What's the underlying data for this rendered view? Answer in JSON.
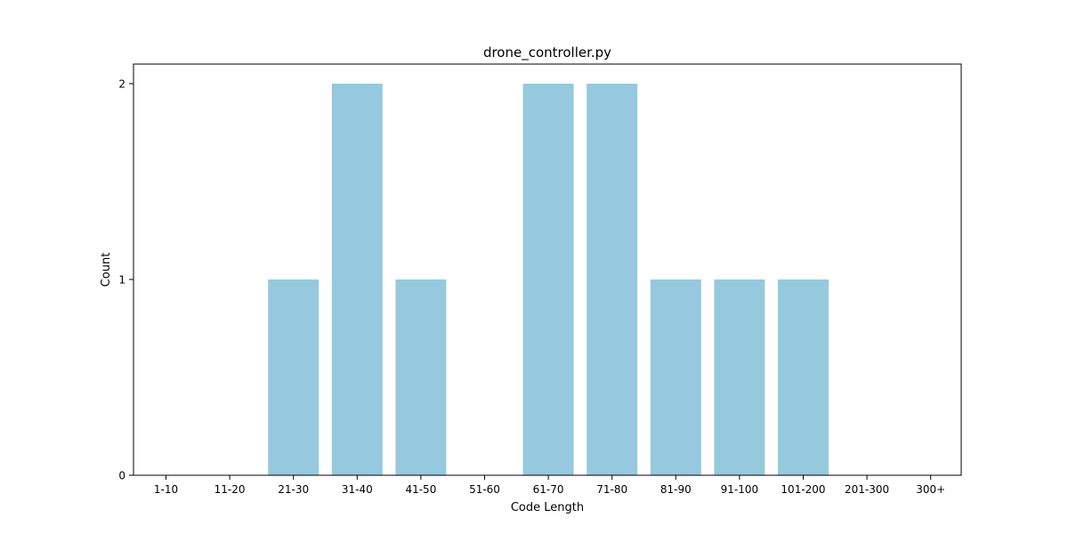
{
  "chart_data": {
    "type": "bar",
    "title": "drone_controller.py",
    "xlabel": "Code Length",
    "ylabel": "Count",
    "categories": [
      "1-10",
      "11-20",
      "21-30",
      "31-40",
      "41-50",
      "51-60",
      "61-70",
      "71-80",
      "81-90",
      "91-100",
      "101-200",
      "201-300",
      "300+"
    ],
    "values": [
      0,
      0,
      1,
      2,
      1,
      0,
      2,
      2,
      1,
      1,
      1,
      0,
      0
    ],
    "ylim": [
      0,
      2.1
    ],
    "yticks": [
      "0",
      "1",
      "2"
    ],
    "bar_color": "#96c9dd",
    "grid": false,
    "legend": "none"
  }
}
